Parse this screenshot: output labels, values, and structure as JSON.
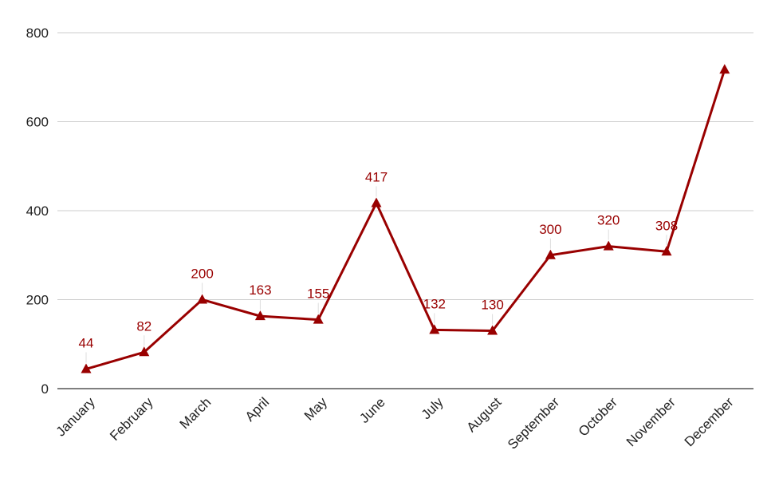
{
  "chart_data": {
    "type": "line",
    "title": "",
    "xlabel": "",
    "ylabel": "",
    "categories": [
      "January",
      "February",
      "March",
      "April",
      "May",
      "June",
      "July",
      "August",
      "September",
      "October",
      "November",
      "December"
    ],
    "series": [
      {
        "values": [
          44,
          82,
          200,
          163,
          155,
          417,
          132,
          130,
          300,
          320,
          308,
          717
        ],
        "value_labels": [
          "44",
          "82",
          "200",
          "163",
          "155",
          "417",
          "132",
          "130",
          "300",
          "320",
          "308",
          ""
        ],
        "color": "#990000",
        "marker": "triangle"
      }
    ],
    "ylim": [
      0,
      800
    ],
    "yticks": [
      0,
      200,
      400,
      600,
      800
    ],
    "grid": true,
    "legend": "none",
    "x_tick_rotation": "45-degree"
  }
}
